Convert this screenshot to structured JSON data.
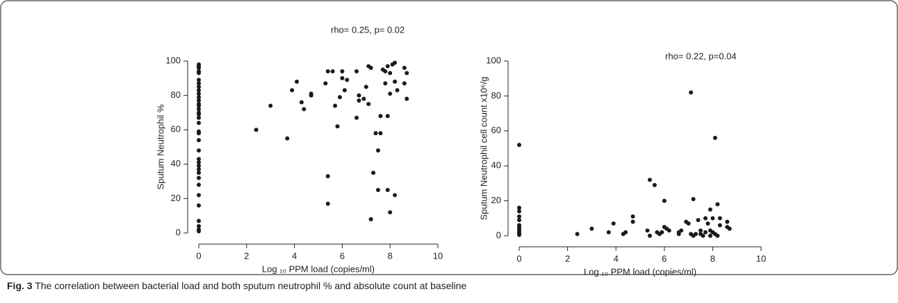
{
  "chart_data": [
    {
      "type": "scatter",
      "annotation": "rho= 0.25, p= 0.02",
      "x_label": "Log ₁₀ PPM load (copies/ml)",
      "y_label": "Sputum Neutrophil %",
      "color": "#1a1a1a",
      "xlim": [
        0,
        10
      ],
      "ylim": [
        0,
        100
      ],
      "xticks": [
        0,
        2,
        4,
        6,
        8,
        10
      ],
      "yticks": [
        0,
        20,
        40,
        60,
        80,
        100
      ],
      "x": [
        0,
        0,
        0,
        0,
        0,
        0,
        0,
        0,
        0,
        0,
        0,
        0,
        0,
        0,
        0,
        0,
        0,
        0,
        0,
        0,
        0,
        0,
        0,
        0,
        0,
        0,
        0,
        0,
        0,
        0,
        0,
        0,
        0,
        0,
        0,
        0,
        2.4,
        3.0,
        3.7,
        3.9,
        4.1,
        4.3,
        4.4,
        4.7,
        4.7,
        5.3,
        5.4,
        5.4,
        5.4,
        5.6,
        5.7,
        5.8,
        5.9,
        6.0,
        6.0,
        6.1,
        6.2,
        6.6,
        6.6,
        6.7,
        6.7,
        6.9,
        7.0,
        7.1,
        7.1,
        7.2,
        7.2,
        7.3,
        7.4,
        7.5,
        7.5,
        7.6,
        7.6,
        7.7,
        7.8,
        7.8,
        7.9,
        7.9,
        7.9,
        8.0,
        8.0,
        8.0,
        8.1,
        8.2,
        8.2,
        8.2,
        8.3,
        8.6,
        8.6,
        8.7,
        8.7
      ],
      "values": [
        98,
        97,
        96,
        94,
        93,
        89,
        87,
        85,
        83,
        81,
        79,
        77,
        75,
        74,
        72,
        70,
        69,
        67,
        64,
        59,
        58,
        54,
        48,
        43,
        41,
        39,
        37,
        35,
        32,
        28,
        22,
        16,
        7,
        4,
        2,
        1,
        60,
        74,
        55,
        83,
        88,
        76,
        72,
        81,
        80,
        87,
        94,
        33,
        17,
        94,
        74,
        62,
        79,
        94,
        90,
        83,
        89,
        67,
        94,
        80,
        77,
        78,
        85,
        75,
        97,
        96,
        8,
        35,
        58,
        48,
        25,
        68,
        58,
        95,
        87,
        94,
        97,
        25,
        68,
        93,
        81,
        12,
        98,
        99,
        22,
        88,
        83,
        87,
        96,
        93,
        78
      ]
    },
    {
      "type": "scatter",
      "annotation": "rho= 0.22, p=0.04",
      "x_label": "Log ₁₀ PPM load (copies/ml)",
      "y_label": "Sputum Neutrophil cell count x10⁶/g",
      "color": "#1a1a1a",
      "xlim": [
        0,
        10
      ],
      "ylim": [
        0,
        100
      ],
      "xticks": [
        0,
        2,
        4,
        6,
        8,
        10
      ],
      "yticks": [
        0,
        20,
        40,
        60,
        80,
        100
      ],
      "x": [
        0,
        0,
        0,
        0,
        0,
        0,
        0,
        0,
        0,
        0,
        0,
        0,
        2.4,
        3.0,
        3.7,
        3.9,
        4.3,
        4.4,
        4.7,
        4.7,
        5.3,
        5.4,
        5.4,
        5.6,
        5.7,
        5.8,
        5.9,
        6.0,
        6.0,
        6.1,
        6.2,
        6.6,
        6.6,
        6.7,
        6.9,
        7.0,
        7.1,
        7.1,
        7.2,
        7.2,
        7.3,
        7.4,
        7.5,
        7.5,
        7.6,
        7.7,
        7.7,
        7.8,
        7.9,
        7.9,
        7.9,
        8.0,
        8.0,
        8.1,
        8.1,
        8.2,
        8.2,
        8.3,
        8.6,
        8.6,
        8.7,
        8.3
      ],
      "values": [
        52,
        16,
        14,
        11,
        9,
        6,
        5,
        4,
        3,
        2,
        1,
        0.5,
        1,
        4,
        2,
        7,
        1,
        2,
        11,
        8,
        3,
        32,
        0,
        29,
        2,
        1,
        2,
        20,
        5,
        4,
        3,
        1,
        2,
        3,
        8,
        7,
        82,
        1,
        21,
        0,
        1,
        9,
        1,
        3,
        0,
        2,
        10,
        7,
        15,
        3,
        0,
        10,
        2,
        56,
        1,
        18,
        0,
        6,
        8,
        5,
        4,
        10
      ]
    }
  ],
  "caption": {
    "label": "Fig. 3",
    "text": "The correlation between bacterial load and both sputum neutrophil % and absolute count at baseline"
  }
}
